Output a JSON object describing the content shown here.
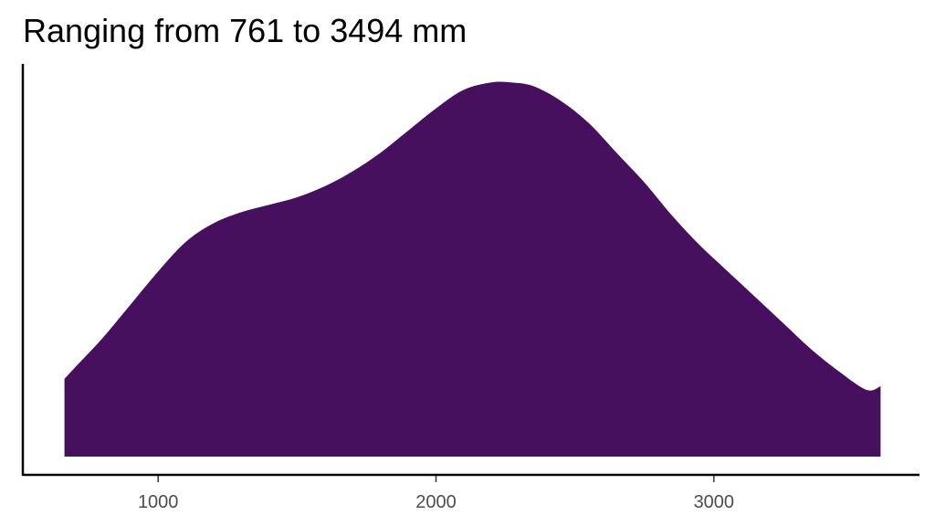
{
  "chart_data": {
    "type": "area",
    "subtype": "density",
    "title": "Ranging from 761 to 3494 mm",
    "xlabel": "",
    "ylabel": "",
    "xlim": [
      513,
      3740
    ],
    "ylim": [
      0,
      1.06
    ],
    "x_ticks": [
      1000,
      2000,
      3000
    ],
    "x_tick_labels": [
      "1000",
      "2000",
      "3000"
    ],
    "grid": false,
    "legend": "none",
    "fill_color": "#46105e",
    "series": [
      {
        "x": [
          663,
          700,
          800,
          900,
          1000,
          1100,
          1200,
          1300,
          1400,
          1500,
          1600,
          1700,
          1800,
          1900,
          2000,
          2100,
          2200,
          2270,
          2350,
          2450,
          2550,
          2650,
          2750,
          2850,
          2950,
          3050,
          3150,
          3250,
          3350,
          3450,
          3550,
          3600
        ],
        "y": [
          0.21,
          0.24,
          0.32,
          0.41,
          0.5,
          0.58,
          0.63,
          0.66,
          0.68,
          0.7,
          0.73,
          0.77,
          0.82,
          0.88,
          0.94,
          0.99,
          1.01,
          1.01,
          1.0,
          0.96,
          0.9,
          0.82,
          0.74,
          0.65,
          0.57,
          0.5,
          0.43,
          0.36,
          0.29,
          0.23,
          0.18,
          0.19
        ]
      }
    ]
  }
}
